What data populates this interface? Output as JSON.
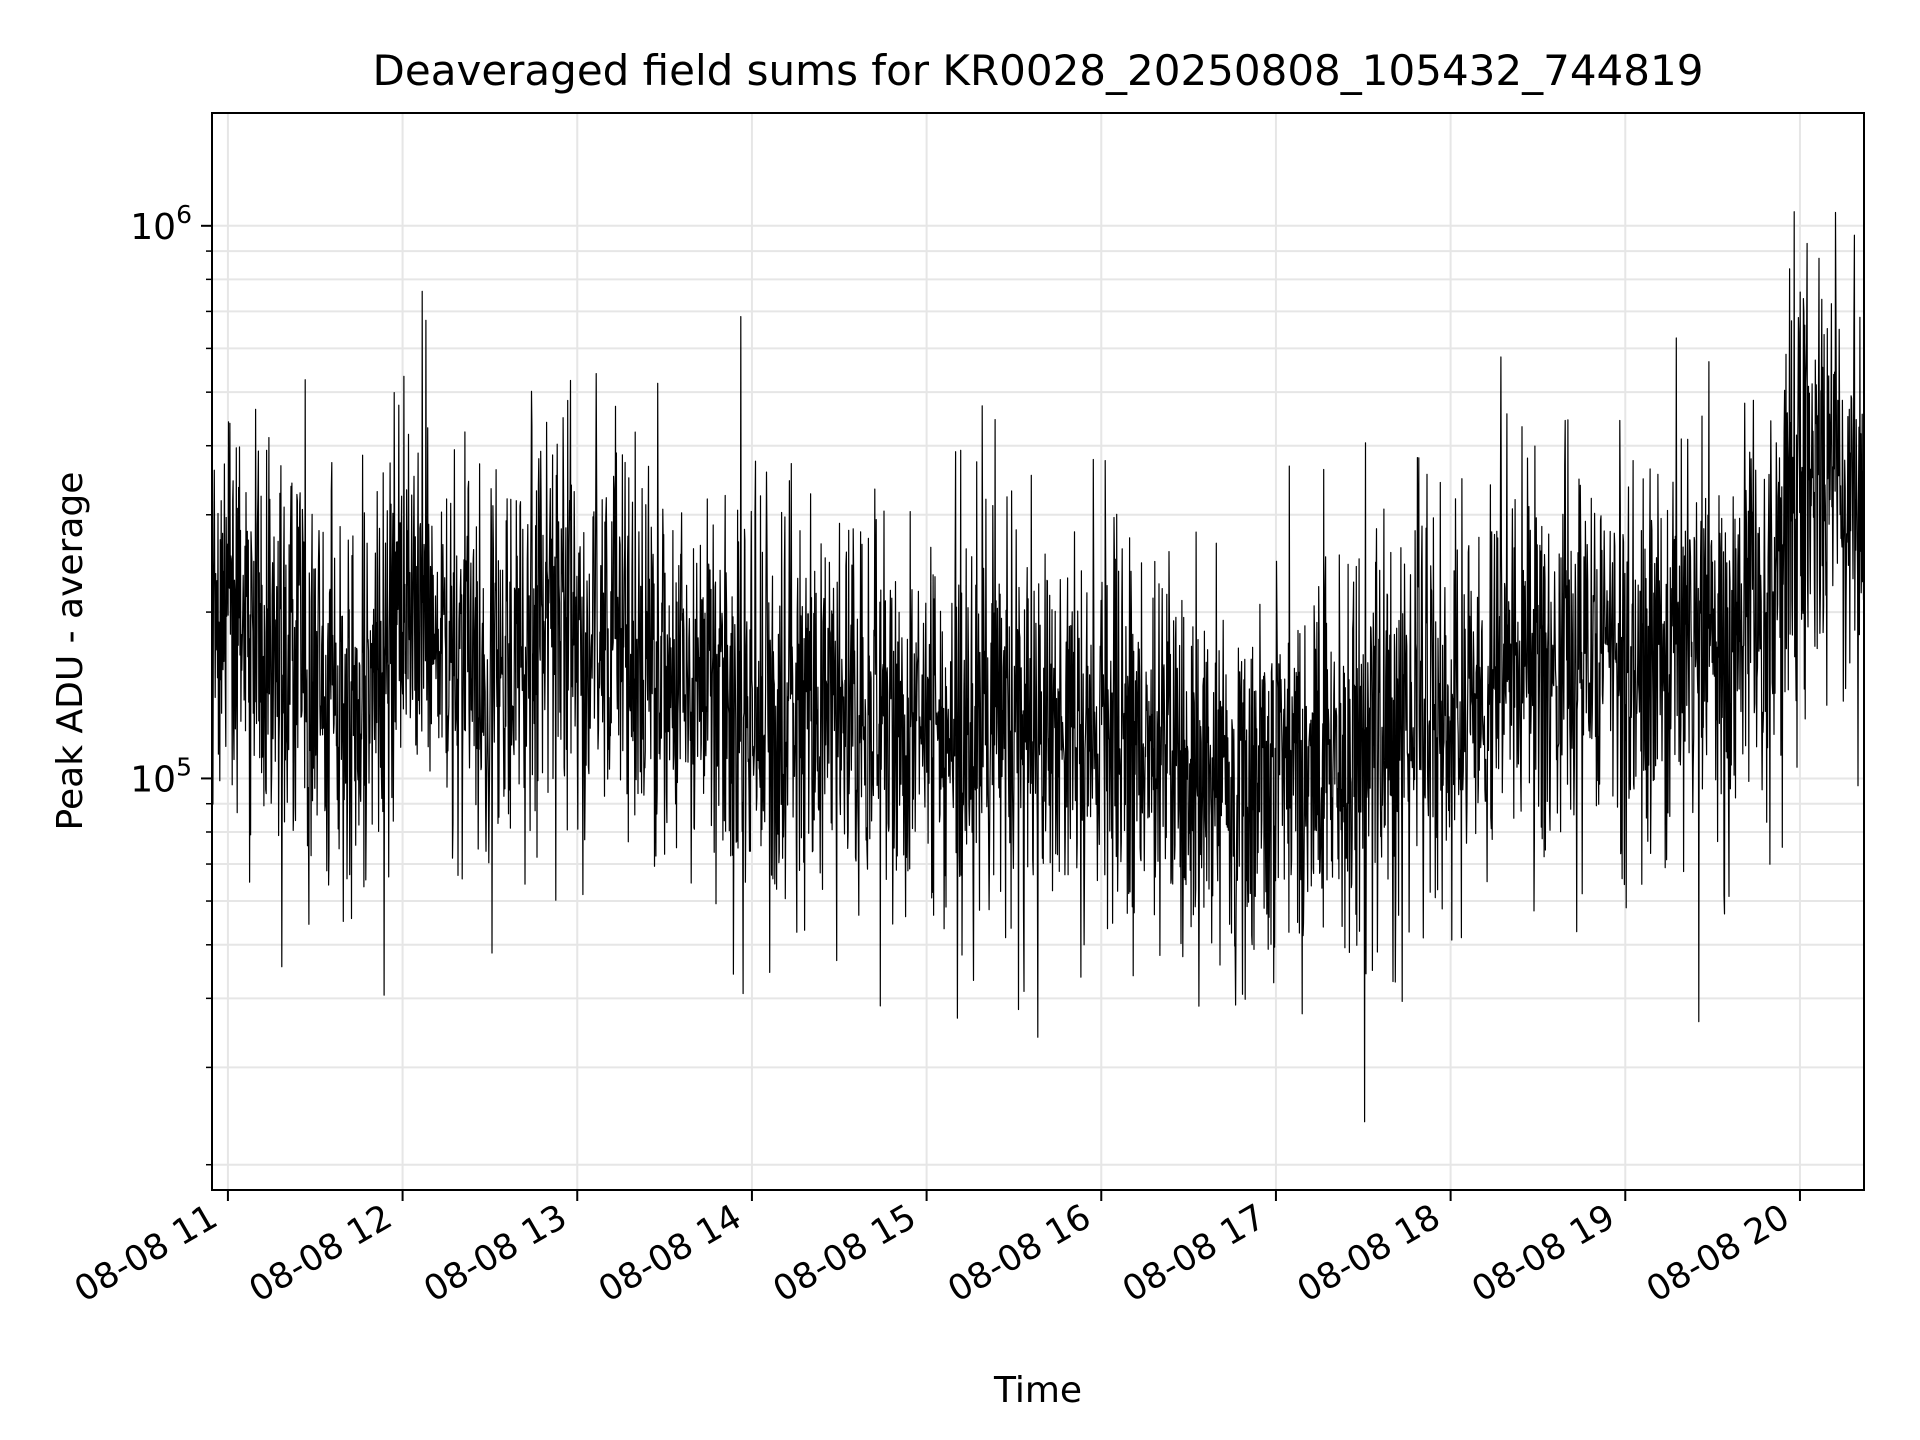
{
  "chart_data": {
    "type": "line",
    "title": "Deaveraged field sums for KR0028_20250808_105432_744819",
    "xlabel": "Time",
    "ylabel": "Peak ADU - average",
    "yscale": "log",
    "ylim": [
      18000,
      1600000
    ],
    "xlim": [
      "2025-08-08 10:54:32",
      "2025-08-08 20:22:00"
    ],
    "grid": true,
    "line_color": "#000000",
    "grid_color": "#e6e6e6",
    "x_ticks": [
      {
        "time": "2025-08-08 11:00",
        "label": "08-08 11"
      },
      {
        "time": "2025-08-08 12:00",
        "label": "08-08 12"
      },
      {
        "time": "2025-08-08 13:00",
        "label": "08-08 13"
      },
      {
        "time": "2025-08-08 14:00",
        "label": "08-08 14"
      },
      {
        "time": "2025-08-08 15:00",
        "label": "08-08 15"
      },
      {
        "time": "2025-08-08 16:00",
        "label": "08-08 16"
      },
      {
        "time": "2025-08-08 17:00",
        "label": "08-08 17"
      },
      {
        "time": "2025-08-08 18:00",
        "label": "08-08 18"
      },
      {
        "time": "2025-08-08 19:00",
        "label": "08-08 19"
      },
      {
        "time": "2025-08-08 20:00",
        "label": "08-08 20"
      }
    ],
    "y_ticks": [
      {
        "value": 100000,
        "base": "10",
        "exp": "5"
      },
      {
        "value": 1000000,
        "base": "10",
        "exp": "6"
      }
    ],
    "series": [
      {
        "x": [
          "2025-08-08 10:54:32",
          "2025-08-08 11:10",
          "2025-08-08 11:20",
          "2025-08-08 11:30",
          "2025-08-08 11:45",
          "2025-08-08 12:00",
          "2025-08-08 12:10",
          "2025-08-08 12:20",
          "2025-08-08 12:40",
          "2025-08-08 12:50",
          "2025-08-08 13:00",
          "2025-08-08 13:20",
          "2025-08-08 13:40",
          "2025-08-08 14:00",
          "2025-08-08 14:30",
          "2025-08-08 15:00",
          "2025-08-08 15:30",
          "2025-08-08 16:00",
          "2025-08-08 16:30",
          "2025-08-08 16:55",
          "2025-08-08 17:30",
          "2025-08-08 18:00",
          "2025-08-08 18:30",
          "2025-08-08 19:00",
          "2025-08-08 19:30",
          "2025-08-08 19:50",
          "2025-08-08 20:00",
          "2025-08-08 20:22"
        ],
        "y_median": [
          240000,
          190000,
          160000,
          150000,
          130000,
          200000,
          190000,
          170000,
          150000,
          200000,
          180000,
          170000,
          150000,
          140000,
          130000,
          120000,
          120000,
          125000,
          105000,
          100000,
          115000,
          140000,
          150000,
          160000,
          180000,
          200000,
          380000,
          330000
        ]
      }
    ]
  }
}
